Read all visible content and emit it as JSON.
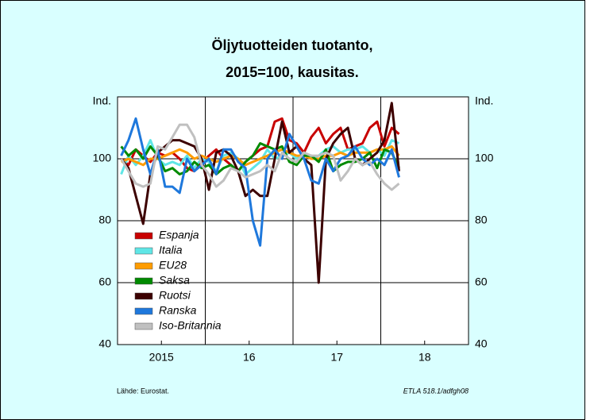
{
  "chart_data": {
    "type": "line",
    "title": [
      "Öljytuotteiden tuotanto,",
      "2015=100, kausitas."
    ],
    "y_label": "Ind.",
    "y2_label": "Ind.",
    "source": "Lähde:  Eurostat.",
    "code": "ETLA 518.1/adfgh08",
    "x": [
      2015.042,
      2015.125,
      2015.208,
      2015.292,
      2015.375,
      2015.458,
      2015.542,
      2015.625,
      2015.708,
      2015.792,
      2015.875,
      2015.958,
      2016.042,
      2016.125,
      2016.208,
      2016.292,
      2016.375,
      2016.458,
      2016.542,
      2016.625,
      2016.708,
      2016.792,
      2016.875,
      2016.958,
      2017.042,
      2017.125,
      2017.208,
      2017.292,
      2017.375,
      2017.458,
      2017.542,
      2017.625,
      2017.708,
      2017.792,
      2017.875,
      2017.958,
      2018.042,
      2018.125,
      2018.208
    ],
    "xlim": [
      2015,
      2019
    ],
    "xticks": [
      {
        "value": 2015.5,
        "label": "2015"
      },
      {
        "value": 2016.5,
        "label": "16"
      },
      {
        "value": 2017.5,
        "label": "17"
      },
      {
        "value": 2018.5,
        "label": "18"
      }
    ],
    "xgrid": [
      2016,
      2017,
      2018
    ],
    "ylim": [
      40,
      120
    ],
    "yticks": [
      40,
      60,
      80,
      100
    ],
    "grid": true,
    "legend": "left",
    "series": [
      {
        "name": "Espanja",
        "color": "#c80000",
        "values": [
          100,
          98,
          103,
          101,
          99,
          102,
          101,
          102,
          100,
          97,
          96,
          99,
          101,
          103,
          100,
          98,
          96,
          99,
          101,
          103,
          104,
          112,
          113,
          106,
          105,
          102,
          107,
          110,
          105,
          108,
          110,
          103,
          104,
          105,
          110,
          112,
          104,
          110,
          108
        ]
      },
      {
        "name": "Italia",
        "color": "#5fe6e6",
        "values": [
          95,
          101,
          98,
          101,
          106,
          100,
          98,
          99,
          98,
          101,
          97,
          100,
          99,
          96,
          101,
          102,
          100,
          95,
          97,
          99,
          103,
          100,
          101,
          102,
          100,
          102,
          100,
          101,
          103,
          104,
          102,
          103,
          103,
          104,
          102,
          103,
          101,
          106,
          105
        ]
      },
      {
        "name": "EU28",
        "color": "#ff9c00",
        "values": [
          99,
          100,
          99,
          98,
          100,
          100,
          101,
          102,
          103,
          102,
          100,
          101,
          100,
          99,
          100,
          101,
          100,
          98,
          99,
          100,
          101,
          102,
          103,
          102,
          101,
          101,
          100,
          100,
          101,
          101,
          102,
          101,
          102,
          102,
          102,
          103,
          103,
          104,
          101
        ]
      },
      {
        "name": "Saksa",
        "color": "#008a00",
        "values": [
          104,
          101,
          103,
          100,
          104,
          101,
          96,
          97,
          95,
          96,
          99,
          97,
          98,
          95,
          97,
          98,
          96,
          99,
          101,
          105,
          104,
          103,
          104,
          99,
          98,
          101,
          101,
          99,
          103,
          96,
          98,
          99,
          99,
          100,
          102,
          97,
          103,
          102,
          97
        ]
      },
      {
        "name": "Ruotsi",
        "color": "#3c0000",
        "values": [
          100,
          97,
          88,
          79,
          95,
          102,
          104,
          106,
          106,
          105,
          104,
          100,
          90,
          102,
          103,
          101,
          96,
          88,
          90,
          88,
          88,
          100,
          112,
          102,
          104,
          100,
          98,
          60,
          100,
          105,
          108,
          110,
          100,
          98,
          100,
          102,
          106,
          118,
          96
        ]
      },
      {
        "name": "Ranska",
        "color": "#1e78dc",
        "values": [
          101,
          106,
          113,
          103,
          95,
          103,
          91,
          91,
          89,
          100,
          96,
          98,
          100,
          95,
          103,
          103,
          99,
          97,
          80,
          72,
          100,
          103,
          100,
          108,
          104,
          100,
          93,
          92,
          100,
          96,
          100,
          101,
          104,
          100,
          98,
          100,
          98,
          103,
          94
        ]
      },
      {
        "name": "Iso-Britannia",
        "color": "#c0c0c0",
        "values": [
          100,
          96,
          92,
          91,
          92,
          104,
          103,
          107,
          111,
          111,
          107,
          98,
          95,
          91,
          93,
          97,
          96,
          94,
          95,
          96,
          98,
          96,
          102,
          100,
          99,
          102,
          101,
          101,
          102,
          101,
          93,
          96,
          100,
          98,
          99,
          95,
          92,
          90,
          92
        ]
      }
    ]
  }
}
